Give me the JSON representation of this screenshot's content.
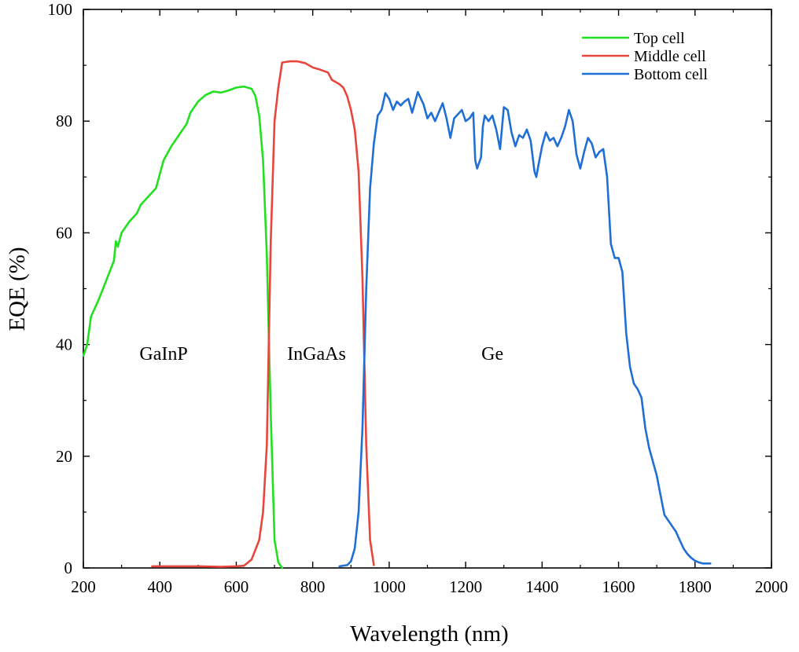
{
  "chart_data": {
    "type": "line",
    "title": "",
    "xlabel": "Wavelength (nm)",
    "ylabel": "EQE (%)",
    "xlim": [
      200,
      2000
    ],
    "ylim": [
      0,
      100
    ],
    "x_ticks": [
      200,
      400,
      600,
      800,
      1000,
      1200,
      1400,
      1600,
      1800,
      2000
    ],
    "y_ticks": [
      0,
      20,
      40,
      60,
      80,
      100
    ],
    "grid": false,
    "legend_position": "top-right",
    "series": [
      {
        "name": "Top cell",
        "color": "#22e01f",
        "points": [
          [
            200,
            38
          ],
          [
            210,
            40
          ],
          [
            220,
            45
          ],
          [
            240,
            48
          ],
          [
            260,
            51.5
          ],
          [
            280,
            55
          ],
          [
            285,
            58.5
          ],
          [
            290,
            57.5
          ],
          [
            300,
            60
          ],
          [
            320,
            62
          ],
          [
            340,
            63.5
          ],
          [
            350,
            65
          ],
          [
            370,
            66.5
          ],
          [
            390,
            68
          ],
          [
            400,
            70.5
          ],
          [
            410,
            73
          ],
          [
            430,
            75.5
          ],
          [
            450,
            77.5
          ],
          [
            470,
            79.5
          ],
          [
            480,
            81.5
          ],
          [
            500,
            83.5
          ],
          [
            520,
            84.7
          ],
          [
            540,
            85.3
          ],
          [
            560,
            85.1
          ],
          [
            580,
            85.5
          ],
          [
            600,
            86.0
          ],
          [
            620,
            86.2
          ],
          [
            640,
            85.8
          ],
          [
            650,
            84.5
          ],
          [
            660,
            81
          ],
          [
            670,
            73
          ],
          [
            680,
            56
          ],
          [
            690,
            28
          ],
          [
            700,
            5
          ],
          [
            710,
            1
          ],
          [
            720,
            0
          ]
        ]
      },
      {
        "name": "Middle cell",
        "color": "#e8453c",
        "points": [
          [
            380,
            0.3
          ],
          [
            400,
            0.3
          ],
          [
            500,
            0.3
          ],
          [
            560,
            0.2
          ],
          [
            600,
            0.3
          ],
          [
            620,
            0.4
          ],
          [
            640,
            1.5
          ],
          [
            660,
            5
          ],
          [
            670,
            10
          ],
          [
            680,
            22
          ],
          [
            690,
            58
          ],
          [
            700,
            80
          ],
          [
            710,
            86
          ],
          [
            720,
            90.5
          ],
          [
            740,
            90.7
          ],
          [
            760,
            90.7
          ],
          [
            780,
            90.4
          ],
          [
            800,
            89.6
          ],
          [
            820,
            89.2
          ],
          [
            840,
            88.7
          ],
          [
            850,
            87.4
          ],
          [
            860,
            87.0
          ],
          [
            870,
            86.6
          ],
          [
            880,
            86.0
          ],
          [
            890,
            84.5
          ],
          [
            900,
            82
          ],
          [
            910,
            78.5
          ],
          [
            920,
            71
          ],
          [
            930,
            52
          ],
          [
            940,
            22
          ],
          [
            950,
            5
          ],
          [
            960,
            0.5
          ]
        ]
      },
      {
        "name": "Bottom cell",
        "color": "#1f6fd6",
        "points": [
          [
            870,
            0.3
          ],
          [
            890,
            0.5
          ],
          [
            900,
            1.2
          ],
          [
            910,
            3.5
          ],
          [
            920,
            10
          ],
          [
            930,
            25
          ],
          [
            940,
            50
          ],
          [
            950,
            68
          ],
          [
            960,
            76
          ],
          [
            970,
            81
          ],
          [
            980,
            82
          ],
          [
            990,
            85
          ],
          [
            1000,
            84
          ],
          [
            1010,
            82
          ],
          [
            1020,
            83.5
          ],
          [
            1030,
            82.8
          ],
          [
            1040,
            83.5
          ],
          [
            1050,
            84
          ],
          [
            1060,
            81.5
          ],
          [
            1075,
            85.2
          ],
          [
            1090,
            83
          ],
          [
            1100,
            80.5
          ],
          [
            1110,
            81.5
          ],
          [
            1120,
            80
          ],
          [
            1140,
            83.2
          ],
          [
            1150,
            80.5
          ],
          [
            1160,
            77
          ],
          [
            1170,
            80.5
          ],
          [
            1190,
            82
          ],
          [
            1200,
            80
          ],
          [
            1210,
            80.5
          ],
          [
            1220,
            81.5
          ],
          [
            1225,
            73
          ],
          [
            1230,
            71.5
          ],
          [
            1240,
            73.5
          ],
          [
            1245,
            79
          ],
          [
            1250,
            81
          ],
          [
            1260,
            80
          ],
          [
            1270,
            81
          ],
          [
            1280,
            78.5
          ],
          [
            1290,
            75
          ],
          [
            1300,
            82.5
          ],
          [
            1310,
            82
          ],
          [
            1320,
            78
          ],
          [
            1330,
            75.5
          ],
          [
            1340,
            77.5
          ],
          [
            1350,
            77
          ],
          [
            1360,
            78.5
          ],
          [
            1370,
            76.5
          ],
          [
            1380,
            71
          ],
          [
            1385,
            70
          ],
          [
            1390,
            72
          ],
          [
            1400,
            75.5
          ],
          [
            1410,
            78
          ],
          [
            1420,
            76.5
          ],
          [
            1430,
            77
          ],
          [
            1440,
            75.5
          ],
          [
            1450,
            77
          ],
          [
            1460,
            79
          ],
          [
            1470,
            82
          ],
          [
            1480,
            80
          ],
          [
            1490,
            74
          ],
          [
            1500,
            71.5
          ],
          [
            1510,
            74.5
          ],
          [
            1520,
            77
          ],
          [
            1530,
            76
          ],
          [
            1540,
            73.5
          ],
          [
            1550,
            74.5
          ],
          [
            1560,
            75
          ],
          [
            1570,
            70
          ],
          [
            1580,
            58
          ],
          [
            1590,
            55.5
          ],
          [
            1600,
            55.5
          ],
          [
            1610,
            53
          ],
          [
            1620,
            42
          ],
          [
            1630,
            36
          ],
          [
            1640,
            33
          ],
          [
            1650,
            32
          ],
          [
            1660,
            30.5
          ],
          [
            1670,
            25
          ],
          [
            1680,
            21.5
          ],
          [
            1690,
            19
          ],
          [
            1700,
            16.5
          ],
          [
            1710,
            13
          ],
          [
            1720,
            9.5
          ],
          [
            1730,
            8.5
          ],
          [
            1740,
            7.5
          ],
          [
            1750,
            6.5
          ],
          [
            1760,
            5
          ],
          [
            1770,
            3.5
          ],
          [
            1780,
            2.5
          ],
          [
            1790,
            1.8
          ],
          [
            1800,
            1.3
          ],
          [
            1810,
            1.0
          ],
          [
            1820,
            0.8
          ],
          [
            1840,
            0.8
          ]
        ]
      }
    ],
    "annotations": [
      {
        "text": "GaInP",
        "x": 410,
        "y": 37.3
      },
      {
        "text": "InGaAs",
        "x": 810,
        "y": 37.3
      },
      {
        "text": "Ge",
        "x": 1270,
        "y": 37.3
      }
    ]
  }
}
